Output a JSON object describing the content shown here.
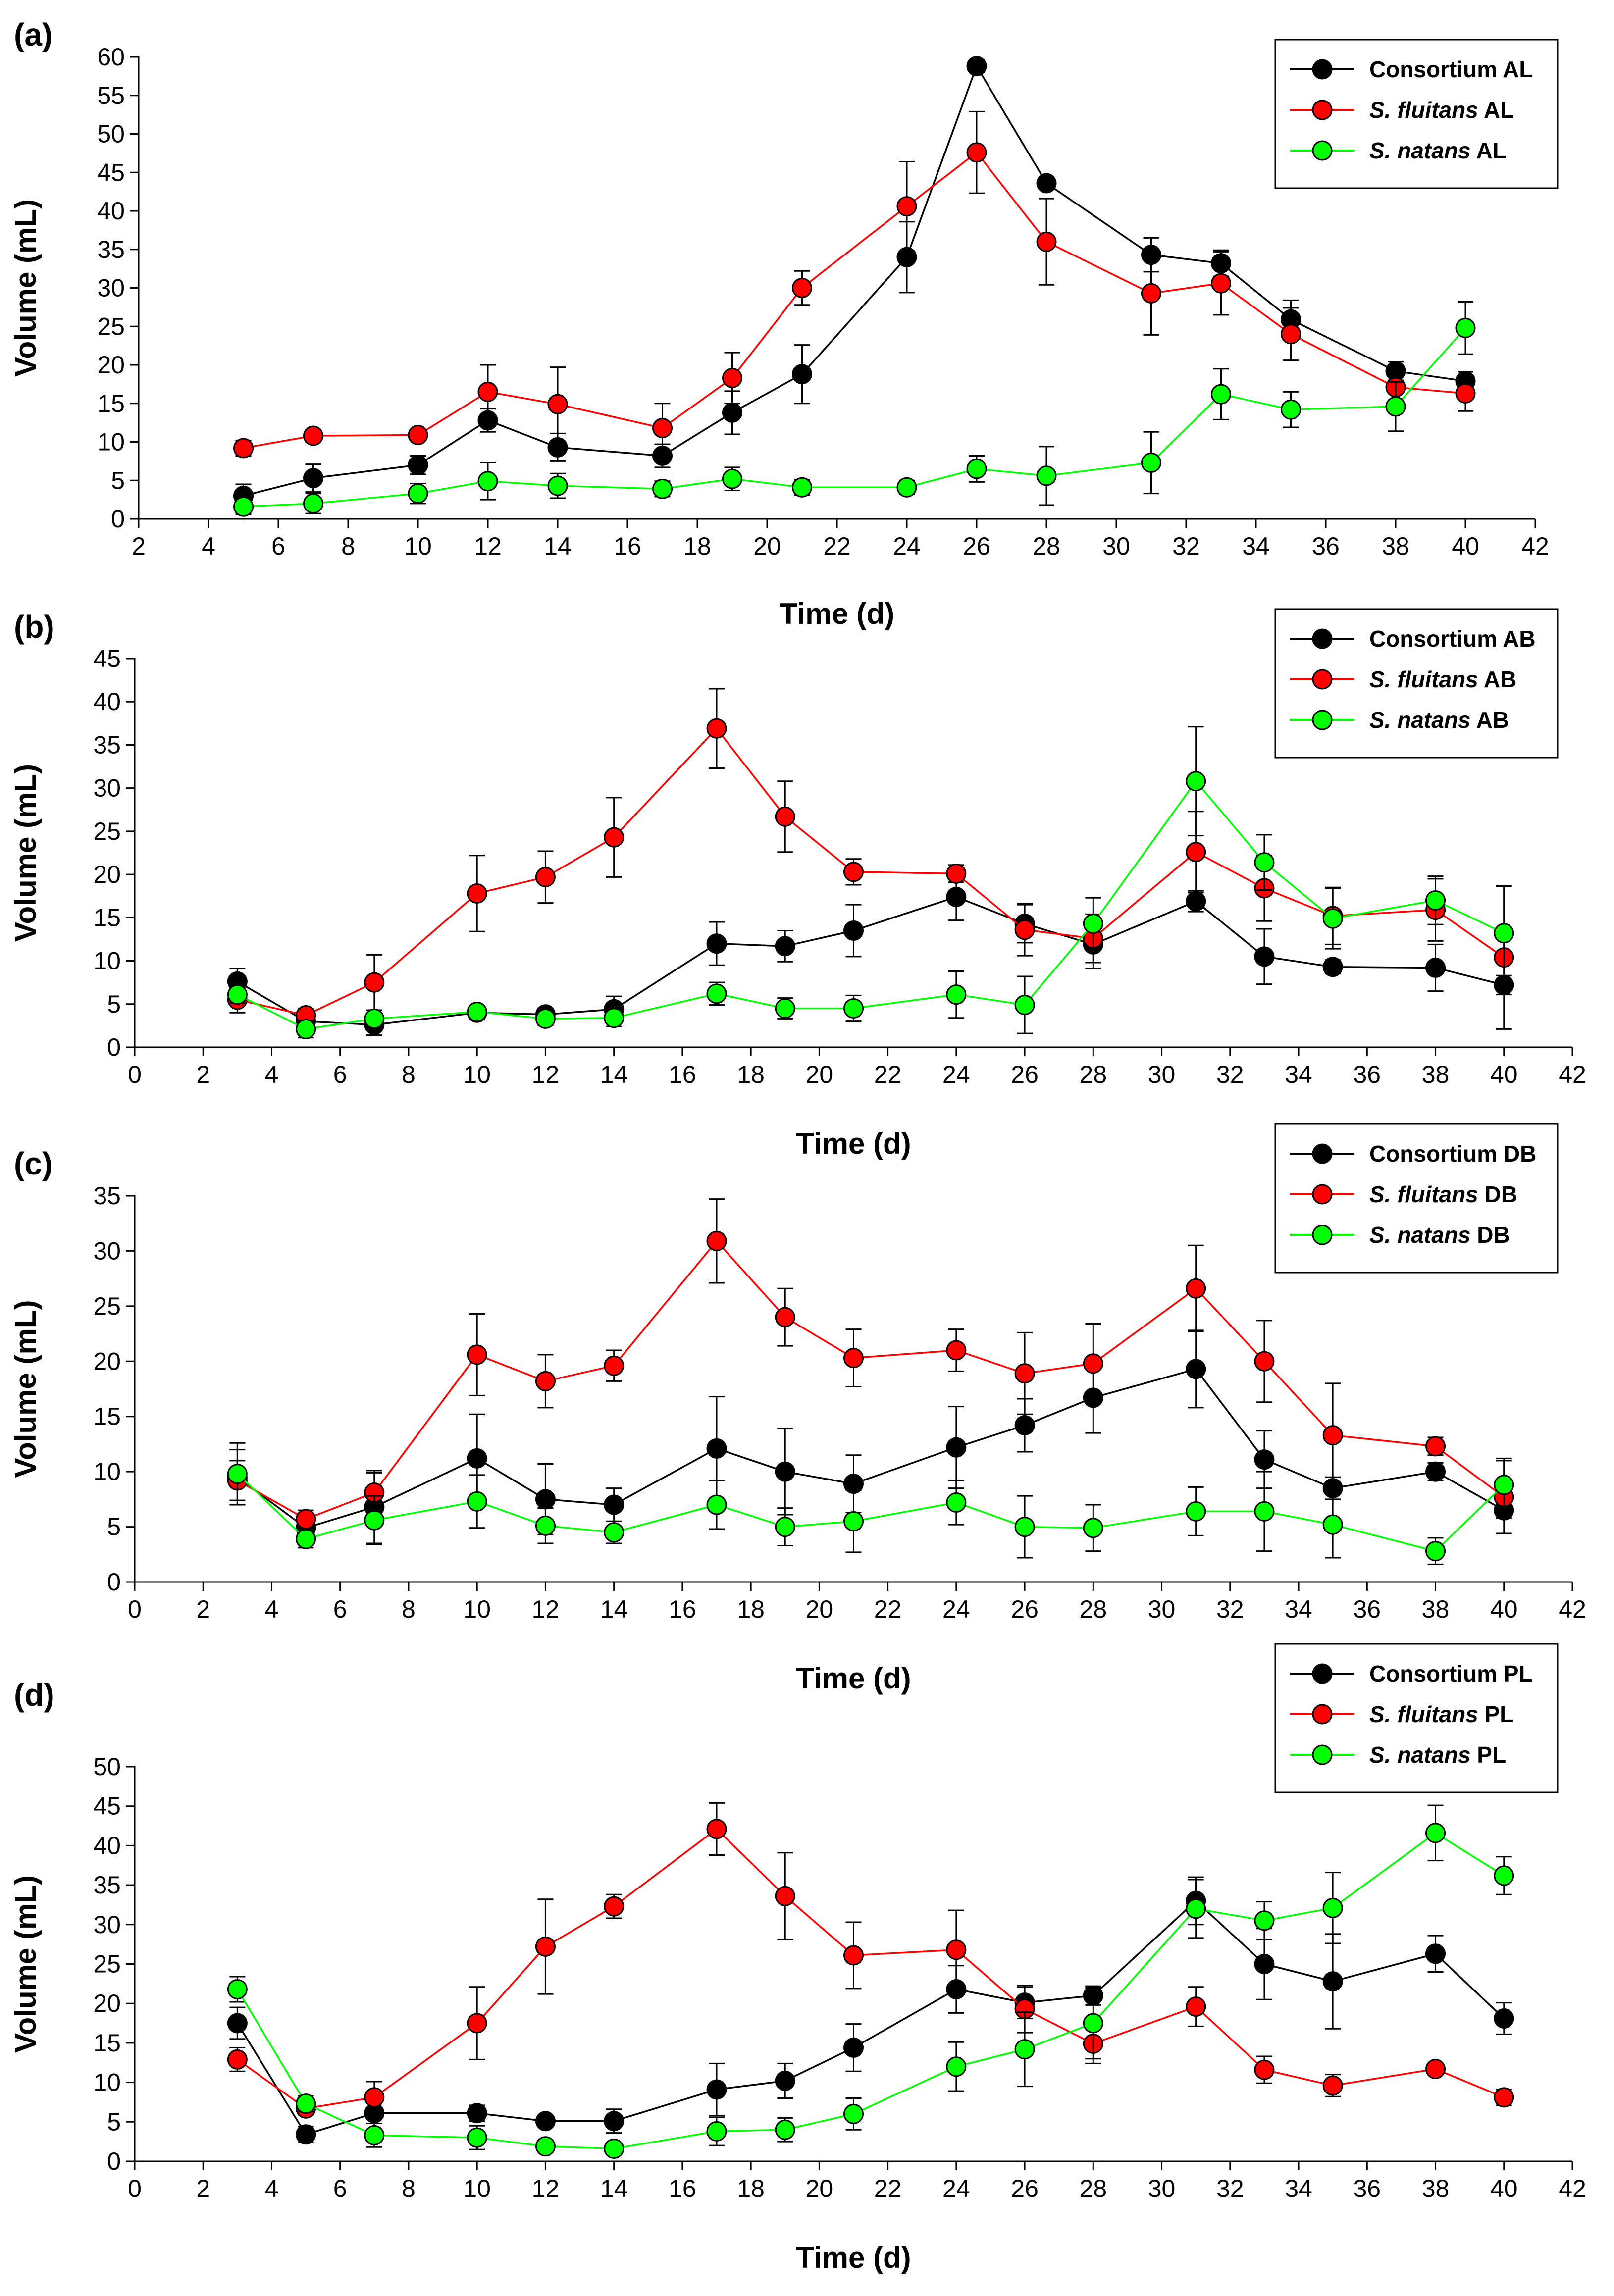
{
  "colors": {
    "consortium": "#000000",
    "fluitans": "#ff0000",
    "natans": "#00ff00"
  },
  "chart_data": [
    {
      "type": "line",
      "panel_label": "(a)",
      "xlabel": "Time (d)",
      "ylabel": "Volume (mL)",
      "xlim": [
        2,
        42
      ],
      "ylim": [
        0,
        60
      ],
      "xticks": [
        2,
        4,
        6,
        8,
        10,
        12,
        14,
        16,
        18,
        20,
        22,
        24,
        26,
        28,
        30,
        32,
        34,
        36,
        38,
        40,
        42
      ],
      "yticks": [
        0,
        5,
        10,
        15,
        20,
        25,
        30,
        35,
        40,
        45,
        50,
        55,
        60
      ],
      "legend_position": "top-right",
      "series": [
        {
          "legend_italic": "",
          "legend_suffix": "Consortium AL",
          "color_key": "consortium",
          "x": [
            5,
            7,
            10,
            12,
            14,
            17,
            19,
            21,
            24,
            26,
            28,
            31,
            33,
            35,
            38,
            40
          ],
          "y": [
            3,
            5.3,
            7,
            12.8,
            9.3,
            8.2,
            13.8,
            18.8,
            34,
            58.8,
            43.6,
            34.3,
            33.2,
            25.9,
            19.2,
            17.9
          ],
          "err": [
            1.5,
            1.8,
            1.2,
            1.5,
            1.8,
            1.5,
            2.8,
            3.8,
            4.6,
            0.8,
            0.8,
            2.2,
            1.7,
            2.5,
            1.2,
            1.2
          ]
        },
        {
          "legend_italic": "S. fluitans",
          "legend_suffix": "AL",
          "color_key": "fluitans",
          "x": [
            5,
            7,
            10,
            12,
            14,
            17,
            19,
            21,
            24,
            26,
            28,
            31,
            33,
            35,
            38,
            40
          ],
          "y": [
            9.2,
            10.8,
            10.9,
            16.5,
            14.9,
            11.8,
            18.3,
            30,
            40.6,
            47.6,
            36,
            29.3,
            30.6,
            24,
            17.1,
            16.3
          ],
          "err": [
            1.0,
            0.8,
            0.6,
            3.5,
            4.8,
            3.2,
            3.3,
            2.2,
            5.8,
            5.3,
            5.6,
            5.4,
            4.1,
            3.4,
            2.2,
            2.3
          ]
        },
        {
          "legend_italic": "S. natans",
          "legend_suffix": "AL",
          "color_key": "natans",
          "x": [
            5,
            7,
            10,
            12,
            14,
            17,
            19,
            21,
            24,
            26,
            28,
            31,
            33,
            35,
            38,
            40
          ],
          "y": [
            1.6,
            2,
            3.3,
            4.9,
            4.3,
            3.9,
            5.2,
            4.1,
            4.1,
            6.5,
            5.6,
            7.3,
            16.2,
            14.2,
            14.6,
            24.8
          ],
          "err": [
            1.0,
            1.3,
            1.3,
            2.4,
            1.6,
            1.0,
            1.5,
            1.0,
            0.9,
            1.7,
            3.8,
            4.0,
            3.3,
            2.3,
            3.2,
            3.4
          ]
        }
      ]
    },
    {
      "type": "line",
      "panel_label": "(b)",
      "xlabel": "Time (d)",
      "ylabel": "Volume (mL)",
      "xlim": [
        0,
        42
      ],
      "ylim": [
        0,
        45
      ],
      "xticks": [
        0,
        2,
        4,
        6,
        8,
        10,
        12,
        14,
        16,
        18,
        20,
        22,
        24,
        26,
        28,
        30,
        32,
        34,
        36,
        38,
        40,
        42
      ],
      "yticks": [
        0,
        5,
        10,
        15,
        20,
        25,
        30,
        35,
        40,
        45
      ],
      "legend_position": "top-right",
      "series": [
        {
          "legend_italic": "",
          "legend_suffix": "Consortium AB",
          "color_key": "consortium",
          "x": [
            3,
            5,
            7,
            10,
            12,
            14,
            17,
            19,
            21,
            24,
            26,
            28,
            31,
            33,
            35,
            38,
            40
          ],
          "y": [
            7.6,
            3,
            2.6,
            4,
            3.8,
            4.4,
            12,
            11.7,
            13.5,
            17.4,
            14.3,
            11.9,
            16.9,
            10.5,
            9.3,
            9.2,
            7.2
          ],
          "err": [
            1.5,
            1.0,
            1.2,
            0.8,
            0.7,
            1.5,
            2.5,
            1.8,
            3.0,
            2.7,
            2.2,
            2.8,
            1.2,
            3.2,
            0.8,
            2.7,
            1.1
          ]
        },
        {
          "legend_italic": "S. fluitans",
          "legend_suffix": "AB",
          "color_key": "fluitans",
          "x": [
            3,
            5,
            7,
            10,
            12,
            14,
            17,
            19,
            21,
            24,
            26,
            28,
            31,
            33,
            35,
            38,
            40
          ],
          "y": [
            5.5,
            3.7,
            7.5,
            17.8,
            19.7,
            24.3,
            36.9,
            26.7,
            20.3,
            20.1,
            13.6,
            12.6,
            22.6,
            18.4,
            15.2,
            15.9,
            10.4
          ],
          "err": [
            1.5,
            0.8,
            3.2,
            4.4,
            3.0,
            4.6,
            4.6,
            4.1,
            1.5,
            1.0,
            3.0,
            2.8,
            4.7,
            3.8,
            3.3,
            3.6,
            8.3
          ]
        },
        {
          "legend_italic": "S. natans",
          "legend_suffix": "AB",
          "color_key": "natans",
          "x": [
            3,
            5,
            7,
            10,
            12,
            14,
            17,
            19,
            21,
            24,
            26,
            28,
            31,
            33,
            35,
            38,
            40
          ],
          "y": [
            6.1,
            2.1,
            3.3,
            4.1,
            3.3,
            3.4,
            6.2,
            4.5,
            4.5,
            6.1,
            4.9,
            14.3,
            30.8,
            21.4,
            14.9,
            17,
            13.2
          ],
          "err": [
            1.0,
            1.0,
            1.0,
            0.7,
            0.8,
            1.0,
            1.3,
            1.2,
            1.5,
            2.7,
            3.3,
            3.0,
            6.3,
            3.2,
            3.5,
            2.8,
            5.4
          ]
        }
      ]
    },
    {
      "type": "line",
      "panel_label": "(c)",
      "xlabel": "Time (d)",
      "ylabel": "Volume (mL)",
      "xlim": [
        0,
        42
      ],
      "ylim": [
        0,
        35
      ],
      "xticks": [
        0,
        2,
        4,
        6,
        8,
        10,
        12,
        14,
        16,
        18,
        20,
        22,
        24,
        26,
        28,
        30,
        32,
        34,
        36,
        38,
        40,
        42
      ],
      "yticks": [
        0,
        5,
        10,
        15,
        20,
        25,
        30,
        35
      ],
      "legend_position": "top-right",
      "series": [
        {
          "legend_italic": "",
          "legend_suffix": "Consortium DB",
          "color_key": "consortium",
          "x": [
            3,
            5,
            7,
            10,
            12,
            14,
            17,
            19,
            21,
            24,
            26,
            28,
            31,
            33,
            35,
            38,
            40
          ],
          "y": [
            9.5,
            4.9,
            6.8,
            11.2,
            7.5,
            7,
            12.1,
            10,
            8.9,
            12.2,
            14.2,
            16.7,
            19.3,
            11.1,
            8.5,
            10,
            6.5
          ],
          "err": [
            2.5,
            1.0,
            3.3,
            4.0,
            3.2,
            1.5,
            4.7,
            3.9,
            2.6,
            3.7,
            2.4,
            3.2,
            3.5,
            2.6,
            1.0,
            0.8,
            0.7
          ]
        },
        {
          "legend_italic": "S. fluitans",
          "legend_suffix": "DB",
          "color_key": "fluitans",
          "x": [
            3,
            5,
            7,
            10,
            12,
            14,
            17,
            19,
            21,
            24,
            26,
            28,
            31,
            33,
            35,
            38,
            40
          ],
          "y": [
            9.2,
            5.7,
            8.1,
            20.6,
            18.2,
            19.6,
            30.9,
            24,
            20.3,
            21,
            18.9,
            19.8,
            26.6,
            20,
            13.3,
            12.3,
            7.7
          ],
          "err": [
            1.8,
            0.8,
            1.8,
            3.7,
            2.4,
            1.4,
            3.8,
            2.6,
            2.6,
            1.9,
            3.7,
            3.6,
            3.9,
            3.7,
            4.7,
            0.8,
            3.3
          ]
        },
        {
          "legend_italic": "S. natans",
          "legend_suffix": "DB",
          "color_key": "natans",
          "x": [
            3,
            5,
            7,
            10,
            12,
            14,
            17,
            19,
            21,
            24,
            26,
            28,
            31,
            33,
            35,
            38,
            40
          ],
          "y": [
            9.8,
            3.9,
            5.6,
            7.3,
            5.1,
            4.5,
            7,
            5,
            5.5,
            7.2,
            5,
            4.9,
            6.4,
            6.4,
            5.2,
            2.8,
            8.8
          ],
          "err": [
            2.8,
            0.8,
            2.2,
            2.4,
            1.6,
            1.0,
            2.2,
            1.7,
            2.8,
            2.0,
            2.8,
            2.1,
            2.2,
            3.6,
            3.0,
            1.2,
            2.4
          ]
        }
      ]
    },
    {
      "type": "line",
      "panel_label": "(d)",
      "xlabel": "Time (d)",
      "ylabel": "Volume (mL)",
      "xlim": [
        0,
        42
      ],
      "ylim": [
        0,
        50
      ],
      "xticks": [
        0,
        2,
        4,
        6,
        8,
        10,
        12,
        14,
        16,
        18,
        20,
        22,
        24,
        26,
        28,
        30,
        32,
        34,
        36,
        38,
        40,
        42
      ],
      "yticks": [
        0,
        5,
        10,
        15,
        20,
        25,
        30,
        35,
        40,
        45,
        50
      ],
      "legend_position": "top-right",
      "series": [
        {
          "legend_italic": "",
          "legend_suffix": "Consortium PL",
          "color_key": "consortium",
          "x": [
            3,
            5,
            7,
            10,
            12,
            14,
            17,
            19,
            21,
            24,
            26,
            28,
            31,
            33,
            35,
            38,
            40
          ],
          "y": [
            17.5,
            3.4,
            6.1,
            6.1,
            5.1,
            5.1,
            9.1,
            10.2,
            14.4,
            21.8,
            20.1,
            21,
            33,
            25,
            22.8,
            26.3,
            18.1
          ],
          "err": [
            2.0,
            1.0,
            1.3,
            1.0,
            0.7,
            1.5,
            3.3,
            2.2,
            3.0,
            3.0,
            2.0,
            1.2,
            3.0,
            4.5,
            6.0,
            2.3,
            2.0
          ]
        },
        {
          "legend_italic": "S. fluitans",
          "legend_suffix": "PL",
          "color_key": "fluitans",
          "x": [
            3,
            5,
            7,
            10,
            12,
            14,
            17,
            19,
            21,
            24,
            26,
            28,
            31,
            33,
            35,
            38,
            40
          ],
          "y": [
            12.9,
            6.7,
            8.1,
            17.5,
            27.2,
            32.3,
            42.1,
            33.6,
            26.1,
            26.8,
            19.3,
            14.9,
            19.6,
            11.6,
            9.6,
            11.7,
            8.1
          ],
          "err": [
            1.5,
            0.8,
            2.0,
            4.6,
            6.0,
            1.5,
            3.3,
            5.5,
            4.2,
            5.0,
            3.0,
            2.5,
            2.5,
            1.7,
            1.4,
            0.7,
            1.0
          ]
        },
        {
          "legend_italic": "S. natans",
          "legend_suffix": "PL",
          "color_key": "natans",
          "x": [
            3,
            5,
            7,
            10,
            12,
            14,
            17,
            19,
            21,
            24,
            26,
            28,
            31,
            33,
            35,
            38,
            40
          ],
          "y": [
            21.8,
            7.3,
            3.3,
            3,
            1.9,
            1.6,
            3.8,
            4,
            6,
            12,
            14.2,
            17.5,
            32,
            30.5,
            32.1,
            41.6,
            36.2
          ],
          "err": [
            1.6,
            1.0,
            1.5,
            1.5,
            0.5,
            0.4,
            1.8,
            1.5,
            2.0,
            3.1,
            4.7,
            4.5,
            3.7,
            2.4,
            4.5,
            3.5,
            2.4
          ]
        }
      ]
    }
  ]
}
